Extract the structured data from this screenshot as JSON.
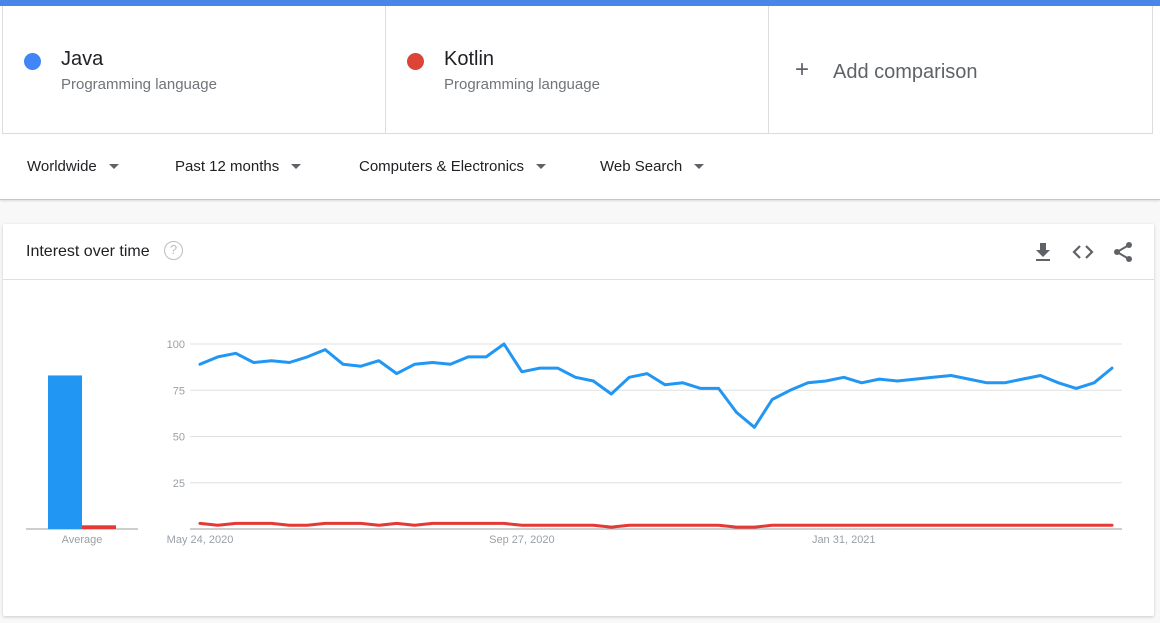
{
  "terms": [
    {
      "name": "Java",
      "type": "Programming language",
      "color": "#4285f4"
    },
    {
      "name": "Kotlin",
      "type": "Programming language",
      "color": "#db4437"
    }
  ],
  "add_comparison": {
    "icon": "plus-icon",
    "label": "Add comparison"
  },
  "filters": [
    {
      "label": "Worldwide"
    },
    {
      "label": "Past 12 months"
    },
    {
      "label": "Computers & Electronics"
    },
    {
      "label": "Web Search"
    }
  ],
  "panel": {
    "title": "Interest over time",
    "help_icon": "help-circle-icon",
    "action_icons": [
      "download-icon",
      "embed-code-icon",
      "share-icon"
    ]
  },
  "chart_data": {
    "type": "line",
    "yticks": [
      25,
      50,
      75,
      100
    ],
    "ylim": [
      0,
      100
    ],
    "grid": true,
    "x_tick_labels": [
      "May 24, 2020",
      "Sep 27, 2020",
      "Jan 31, 2021"
    ],
    "x_tick_index": [
      0,
      18,
      36
    ],
    "average": {
      "label": "Average",
      "values": [
        83,
        2
      ]
    },
    "series": [
      {
        "name": "Java",
        "color": "#2196f3",
        "values": [
          89,
          93,
          95,
          90,
          91,
          90,
          93,
          97,
          89,
          88,
          91,
          84,
          89,
          90,
          89,
          93,
          93,
          100,
          85,
          87,
          87,
          82,
          80,
          73,
          82,
          84,
          78,
          79,
          76,
          76,
          63,
          55,
          70,
          75,
          79,
          80,
          82,
          79,
          81,
          80,
          81,
          82,
          83,
          81,
          79,
          79,
          81,
          83,
          79,
          76,
          79,
          87
        ]
      },
      {
        "name": "Kotlin",
        "color": "#e53935",
        "values": [
          3,
          2,
          3,
          3,
          3,
          2,
          2,
          3,
          3,
          3,
          2,
          3,
          2,
          3,
          3,
          3,
          3,
          3,
          2,
          2,
          2,
          2,
          2,
          1,
          2,
          2,
          2,
          2,
          2,
          2,
          1,
          1,
          2,
          2,
          2,
          2,
          2,
          2,
          2,
          2,
          2,
          2,
          2,
          2,
          2,
          2,
          2,
          2,
          2,
          2,
          2,
          2
        ]
      }
    ]
  }
}
